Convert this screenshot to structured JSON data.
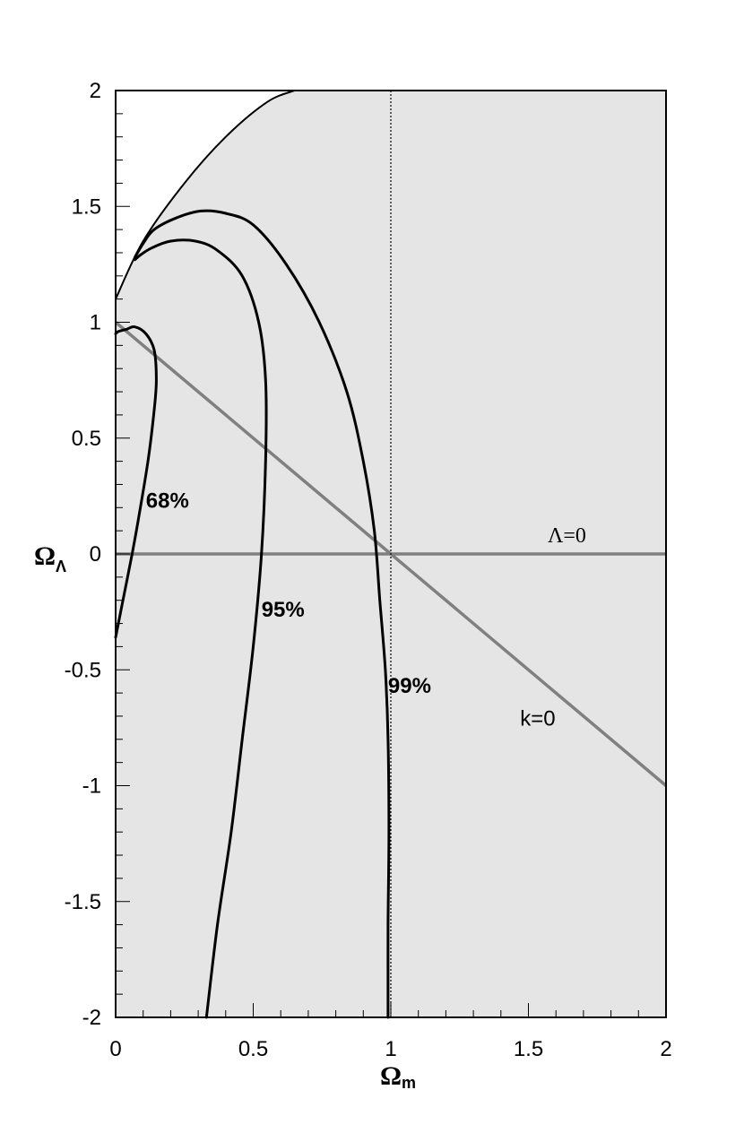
{
  "chart_data": {
    "type": "line",
    "title": "",
    "xlabel": "Ω",
    "xlabel_sub": "m",
    "ylabel": "Ω",
    "ylabel_sub": "Λ",
    "xlim": [
      0,
      2
    ],
    "ylim": [
      -2,
      2
    ],
    "x_ticks": [
      {
        "v": 0,
        "label": "0"
      },
      {
        "v": 0.5,
        "label": "0.5"
      },
      {
        "v": 1,
        "label": "1"
      },
      {
        "v": 1.5,
        "label": "1.5"
      },
      {
        "v": 2,
        "label": "2"
      }
    ],
    "y_ticks": [
      {
        "v": -2,
        "label": "-2"
      },
      {
        "v": -1.5,
        "label": "-1.5"
      },
      {
        "v": -1,
        "label": "-1"
      },
      {
        "v": -0.5,
        "label": "-0.5"
      },
      {
        "v": 0,
        "label": "0"
      },
      {
        "v": 0.5,
        "label": "0.5"
      },
      {
        "v": 1,
        "label": "1"
      },
      {
        "v": 1.5,
        "label": "1.5"
      },
      {
        "v": 2,
        "label": "2"
      }
    ],
    "shaded_region_color": "#e5e5e5",
    "excluded_region_boundary": [
      [
        0,
        1.1
      ],
      [
        0.1,
        1.35
      ],
      [
        0.25,
        1.6
      ],
      [
        0.4,
        1.8
      ],
      [
        0.55,
        1.95
      ],
      [
        0.65,
        2.0
      ]
    ],
    "contours": [
      {
        "label": "68%",
        "points": [
          [
            0,
            -0.36
          ],
          [
            0.03,
            -0.18
          ],
          [
            0.06,
            0
          ],
          [
            0.09,
            0.2
          ],
          [
            0.12,
            0.42
          ],
          [
            0.14,
            0.62
          ],
          [
            0.148,
            0.75
          ],
          [
            0.14,
            0.88
          ],
          [
            0.11,
            0.95
          ],
          [
            0.07,
            0.98
          ],
          [
            0.04,
            0.97
          ],
          [
            0.01,
            0.96
          ],
          [
            0,
            0.95
          ]
        ]
      },
      {
        "label": "95%",
        "points": [
          [
            0.33,
            -2
          ],
          [
            0.37,
            -1.6
          ],
          [
            0.42,
            -1.2
          ],
          [
            0.46,
            -0.8
          ],
          [
            0.5,
            -0.4
          ],
          [
            0.53,
            0
          ],
          [
            0.545,
            0.4
          ],
          [
            0.545,
            0.75
          ],
          [
            0.52,
            1.0
          ],
          [
            0.46,
            1.2
          ],
          [
            0.37,
            1.31
          ],
          [
            0.29,
            1.35
          ],
          [
            0.2,
            1.35
          ],
          [
            0.13,
            1.32
          ],
          [
            0.09,
            1.29
          ],
          [
            0.07,
            1.27
          ]
        ]
      },
      {
        "label": "99%",
        "points": [
          [
            0.99,
            -2
          ],
          [
            0.99,
            -1.6
          ],
          [
            0.993,
            -1.2
          ],
          [
            0.99,
            -0.8
          ],
          [
            0.98,
            -0.5
          ],
          [
            0.96,
            -0.2
          ],
          [
            0.94,
            0.1
          ],
          [
            0.9,
            0.4
          ],
          [
            0.84,
            0.7
          ],
          [
            0.74,
            1.0
          ],
          [
            0.62,
            1.25
          ],
          [
            0.5,
            1.42
          ],
          [
            0.4,
            1.47
          ],
          [
            0.31,
            1.48
          ],
          [
            0.22,
            1.45
          ],
          [
            0.14,
            1.4
          ],
          [
            0.1,
            1.34
          ],
          [
            0.07,
            1.28
          ]
        ]
      }
    ],
    "contour_label_positions": {
      "68%": [
        0.11,
        0.2
      ],
      "95%": [
        0.53,
        -0.27
      ],
      "99%": [
        0.99,
        -0.6
      ]
    },
    "reference_lines": [
      {
        "label": "Λ=0",
        "color": "#808080",
        "points": [
          [
            0,
            0
          ],
          [
            2,
            0
          ]
        ],
        "label_at": [
          1.57,
          0.05
        ]
      },
      {
        "label": "k=0",
        "color": "#808080",
        "points": [
          [
            0,
            1
          ],
          [
            2,
            -1
          ]
        ],
        "label_at": [
          1.47,
          -0.74
        ]
      },
      {
        "label": "",
        "color": "#000000",
        "dotted": true,
        "points": [
          [
            1,
            -2
          ],
          [
            1,
            2
          ]
        ]
      }
    ]
  }
}
